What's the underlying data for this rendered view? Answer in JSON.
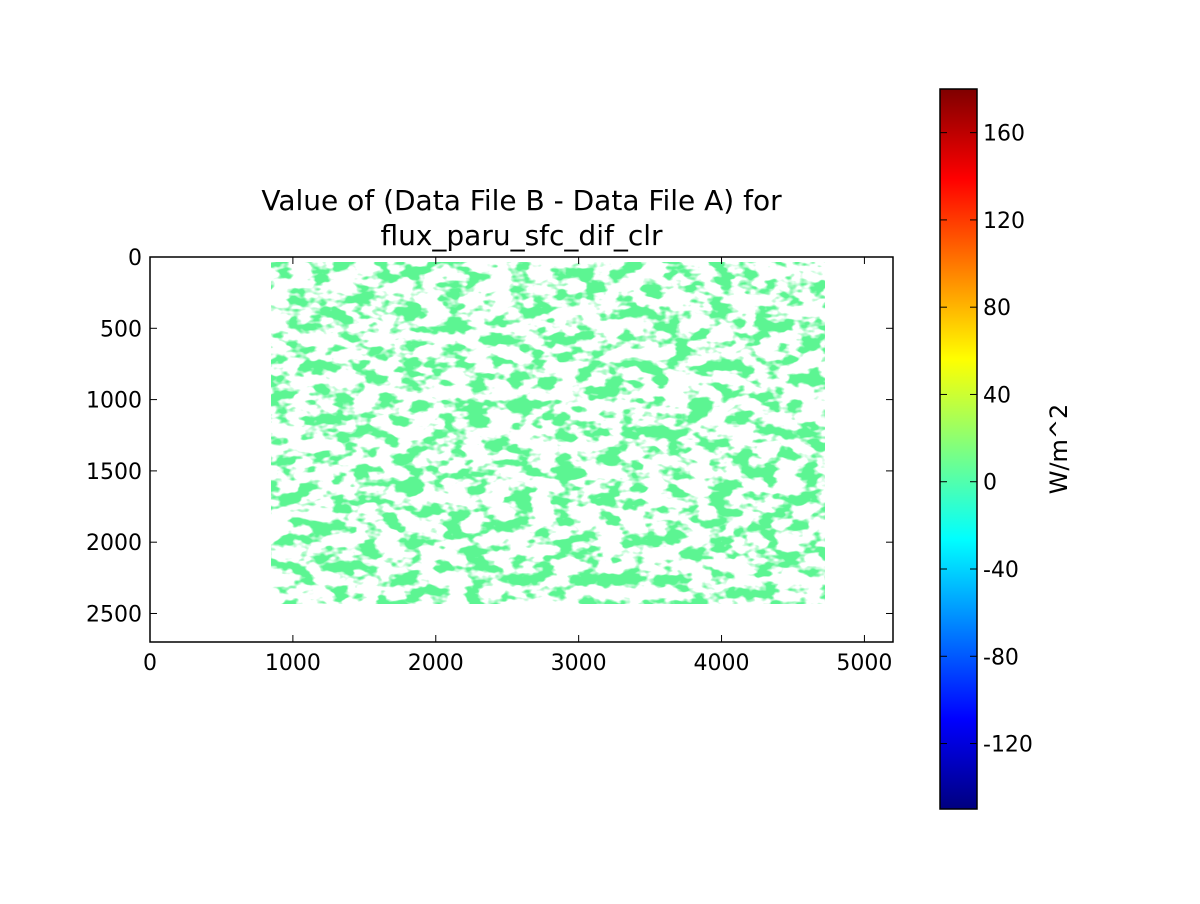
{
  "chart_data": {
    "type": "heatmap",
    "title_lines": [
      "Value of (Data File B - Data File A) for",
      "flux_paru_sfc_dif_clr"
    ],
    "x_ticks": [
      0,
      1000,
      2000,
      3000,
      4000,
      5000
    ],
    "y_ticks": [
      0,
      500,
      1000,
      1500,
      2000,
      2500
    ],
    "xlim": [
      0,
      5200
    ],
    "ylim": [
      2700,
      0
    ],
    "y_inverted": true,
    "grid": false,
    "colormap": "jet",
    "fill_value": 0,
    "fill_color": "#5cf592",
    "colorbar": {
      "label": "W/m^2",
      "vmin": -150,
      "vmax": 180,
      "ticks": [
        -120,
        -80,
        -40,
        0,
        40,
        80,
        120,
        160
      ],
      "colors": [
        "#00007f",
        "#0000ff",
        "#007fff",
        "#00ffff",
        "#7fff7f",
        "#ffff00",
        "#ff7f00",
        "#ff0000",
        "#7f0000"
      ]
    }
  }
}
